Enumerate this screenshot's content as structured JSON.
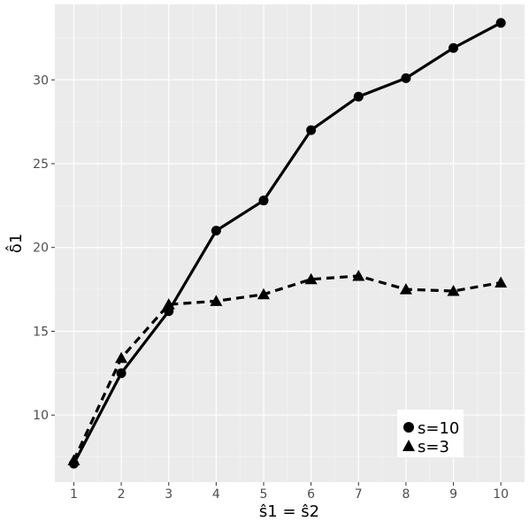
{
  "chart_data": {
    "type": "line",
    "xlabel": "ŝ1 = ŝ2",
    "ylabel": "δ̂1",
    "x": [
      1,
      2,
      3,
      4,
      5,
      6,
      7,
      8,
      9,
      10
    ],
    "xlim": [
      0.6,
      10.5
    ],
    "ylim": [
      6.0,
      34.5
    ],
    "x_ticks": [
      "1",
      "2",
      "3",
      "4",
      "5",
      "6",
      "7",
      "8",
      "9",
      "10"
    ],
    "y_ticks": [
      "10",
      "15",
      "20",
      "25",
      "30"
    ],
    "grid": true,
    "legend_position": "bottom-right",
    "series": [
      {
        "name": "s=10",
        "marker": "circle",
        "line_style": "solid",
        "color": "#000000",
        "values": [
          7.1,
          12.5,
          16.2,
          21.0,
          22.8,
          27.0,
          29.0,
          30.1,
          31.9,
          33.4
        ]
      },
      {
        "name": "s=3",
        "marker": "triangle",
        "line_style": "dashed",
        "color": "#000000",
        "values": [
          7.3,
          13.4,
          16.6,
          16.8,
          17.2,
          18.1,
          18.3,
          17.5,
          17.4,
          17.9
        ]
      }
    ]
  }
}
